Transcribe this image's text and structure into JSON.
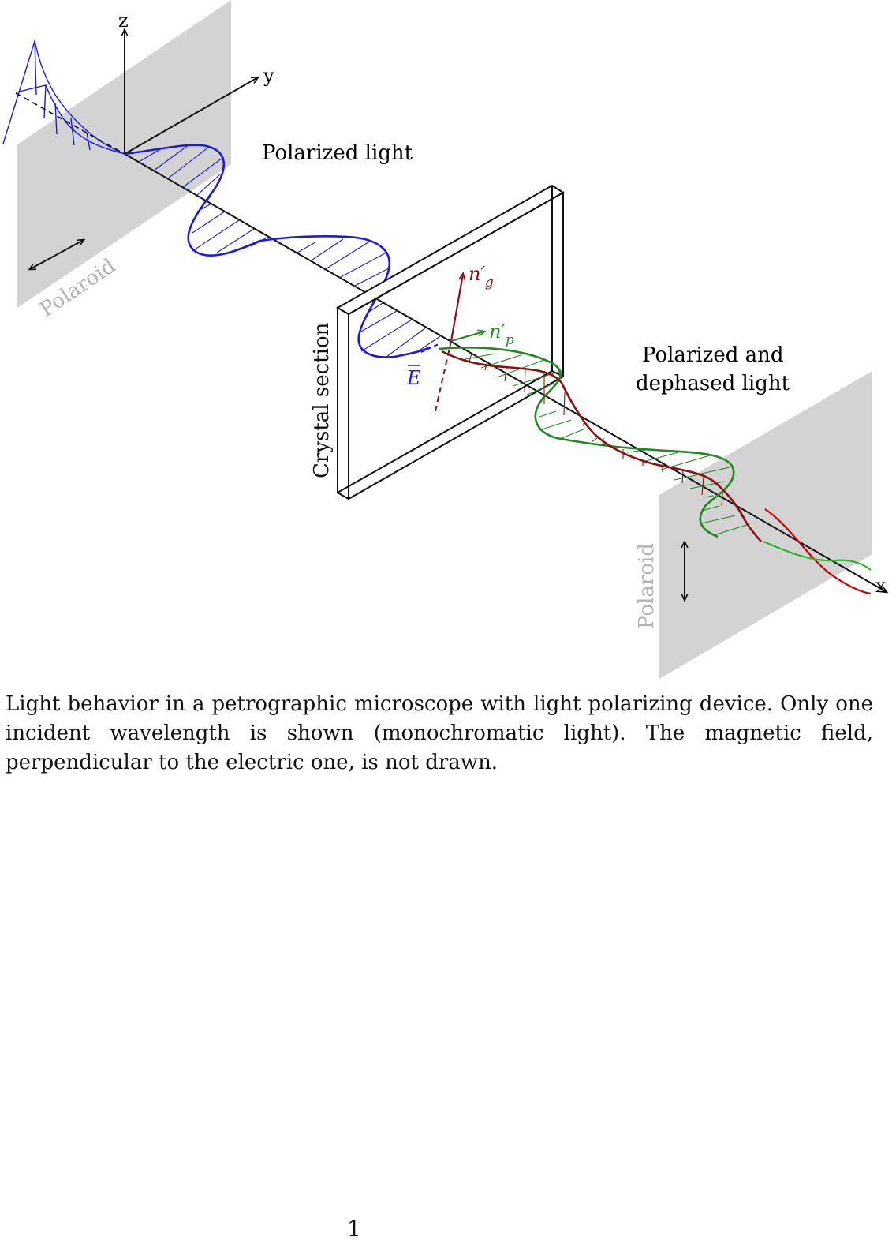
{
  "axes": {
    "x": "x",
    "y": "y",
    "z": "z"
  },
  "labels": {
    "polarized_light": "Polarized light",
    "polarized_dephased_1": "Polarized and",
    "polarized_dephased_2": "dephased light",
    "crystal_section": "Crystal section",
    "polaroid_left": "Polaroid",
    "polaroid_right": "Polaroid",
    "ng": "n′",
    "ng_sub": "g",
    "np": "n′",
    "np_sub": "p",
    "e_field": "E"
  },
  "caption": "Light behavior in a petrographic microscope with light polarizing device. Only one incident wavelength is shown (monochromatic light). The magnetic field, perpendicular to the electric one, is not drawn.",
  "page_number": "1",
  "colors": {
    "blue": "#1a1ae6",
    "green": "#1f8a1f",
    "red": "#8b1010",
    "polaroid_fill": "#d3d3d3",
    "polaroid_text": "#b3b3b3",
    "bright_red": "#cc0000",
    "bright_green": "#22bb22"
  }
}
